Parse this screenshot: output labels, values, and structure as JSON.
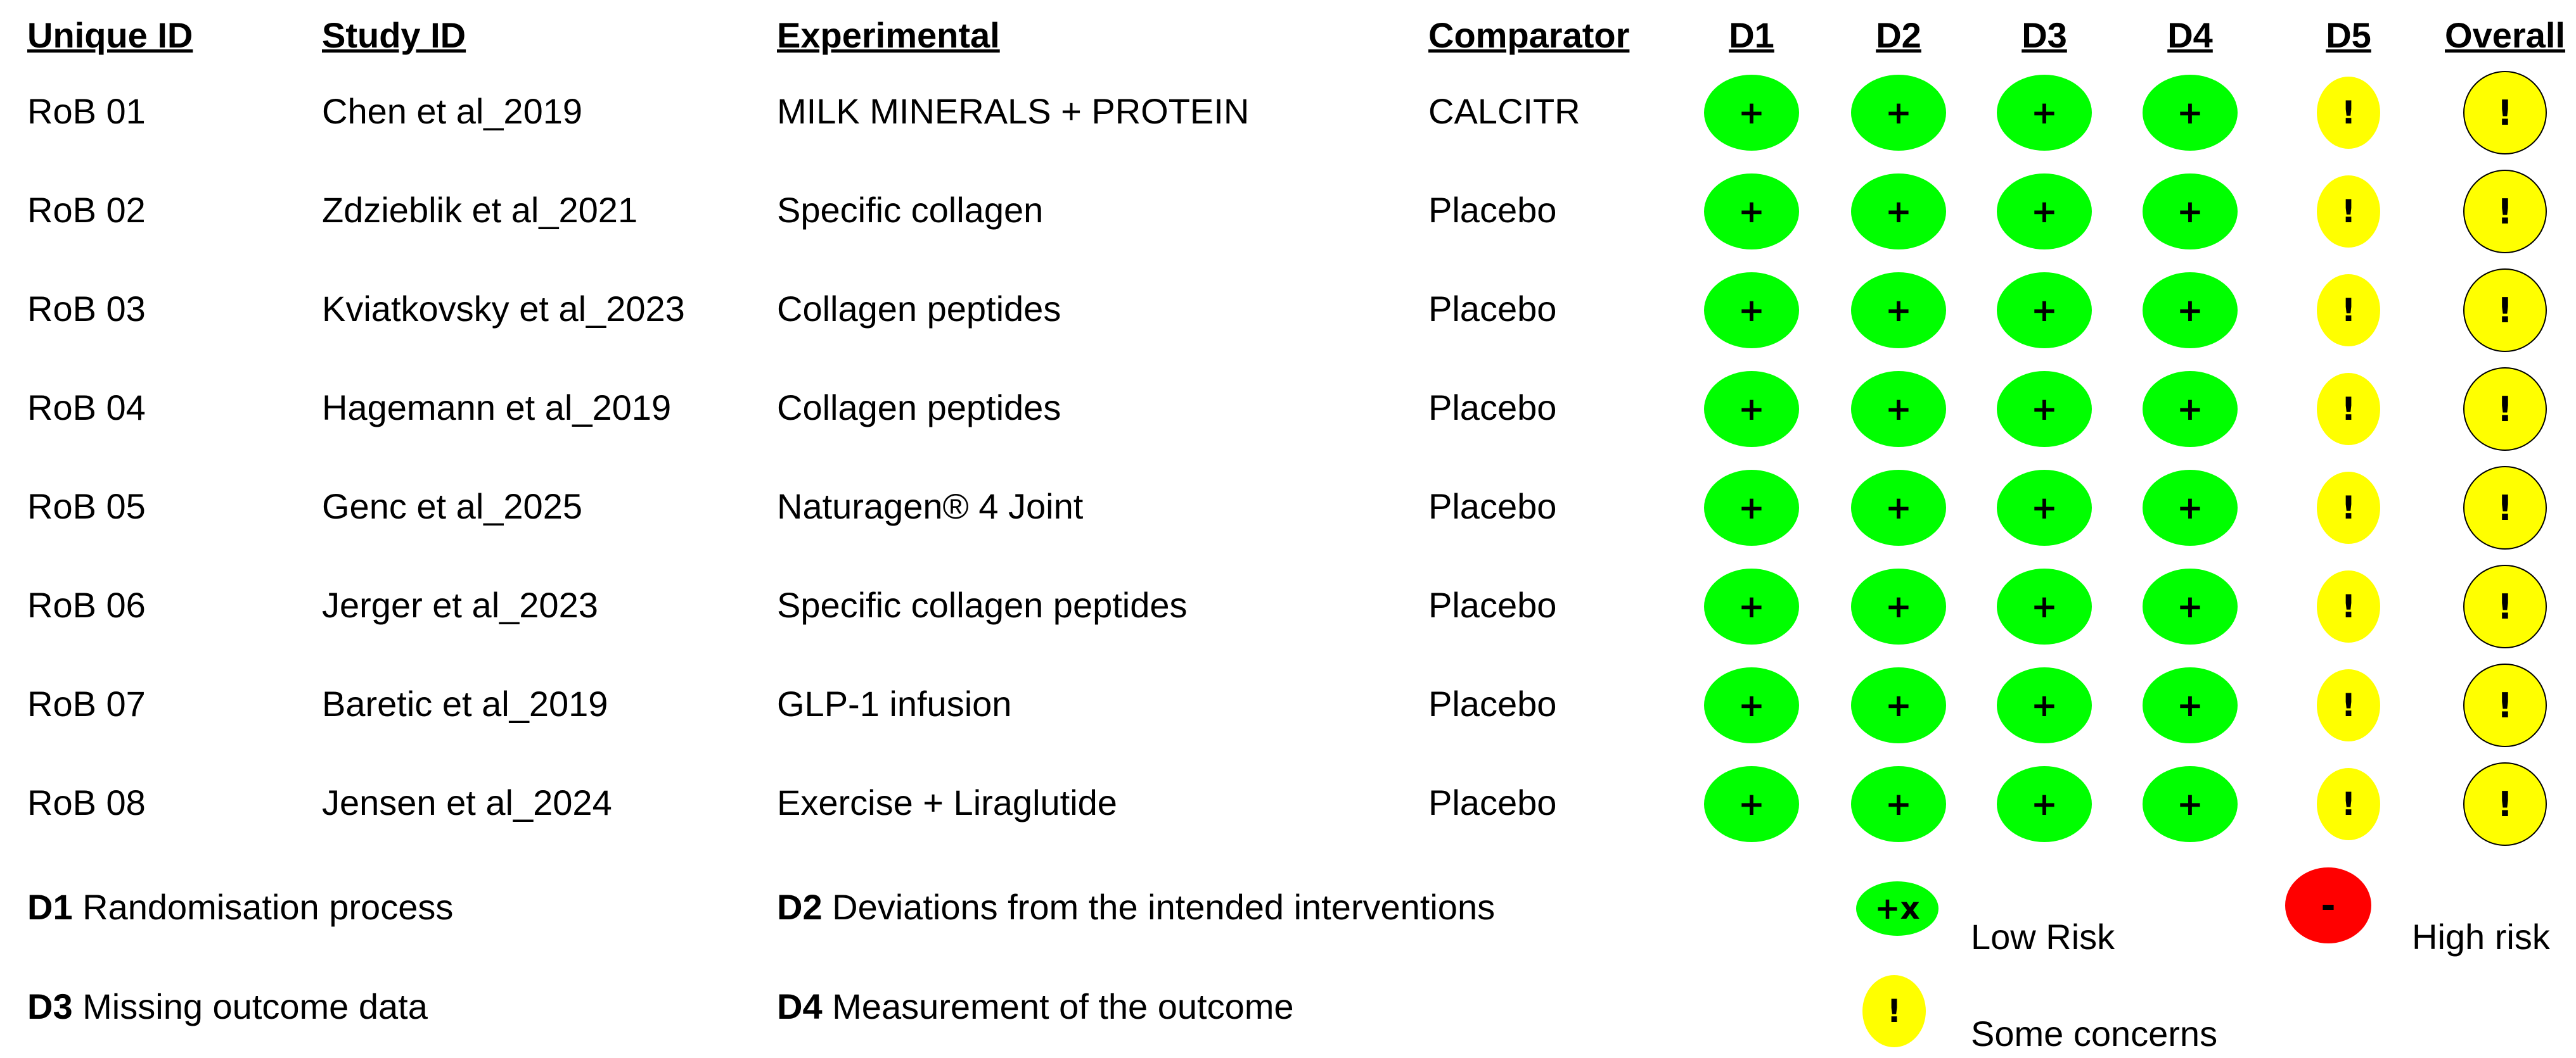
{
  "headers": {
    "unique_id": "Unique ID",
    "study_id": "Study ID",
    "experimental": "Experimental",
    "comparator": "Comparator",
    "d1": "D1",
    "d2": "D2",
    "d3": "D3",
    "d4": "D4",
    "d5": "D5",
    "overall": "Overall"
  },
  "rows": [
    {
      "unique_id": "RoB 01",
      "study_id": "Chen et al_2019",
      "experimental": "MILK MINERALS + PROTEIN",
      "comparator": "CALCITR",
      "d1": "+",
      "d2": "+",
      "d3": "+",
      "d4": "+",
      "d5": "!",
      "overall": "!"
    },
    {
      "unique_id": "RoB 02",
      "study_id": "Zdzieblik et al_2021",
      "experimental": "Specific collagen",
      "comparator": "Placebo",
      "d1": "+",
      "d2": "+",
      "d3": "+",
      "d4": "+",
      "d5": "!",
      "overall": "!"
    },
    {
      "unique_id": "RoB 03",
      "study_id": "Kviatkovsky et al_2023",
      "experimental": "Collagen peptides",
      "comparator": "Placebo",
      "d1": "+",
      "d2": "+",
      "d3": "+",
      "d4": "+",
      "d5": "!",
      "overall": "!"
    },
    {
      "unique_id": "RoB 04",
      "study_id": "Hagemann et al_2019",
      "experimental": "Collagen peptides",
      "comparator": "Placebo",
      "d1": "+",
      "d2": "+",
      "d3": "+",
      "d4": "+",
      "d5": "!",
      "overall": "!"
    },
    {
      "unique_id": "RoB 05",
      "study_id": "Genc et al_2025",
      "experimental": "Naturagen® 4 Joint",
      "comparator": "Placebo",
      "d1": "+",
      "d2": "+",
      "d3": "+",
      "d4": "+",
      "d5": "!",
      "overall": "!"
    },
    {
      "unique_id": "RoB 06",
      "study_id": "Jerger et al_2023",
      "experimental": "Specific collagen peptides",
      "comparator": "Placebo",
      "d1": "+",
      "d2": "+",
      "d3": "+",
      "d4": "+",
      "d5": "!",
      "overall": "!"
    },
    {
      "unique_id": "RoB 07",
      "study_id": "Baretic et al_2019",
      "experimental": "GLP-1 infusion",
      "comparator": "Placebo",
      "d1": "+",
      "d2": "+",
      "d3": "+",
      "d4": "+",
      "d5": "!",
      "overall": "!"
    },
    {
      "unique_id": "RoB 08",
      "study_id": "Jensen et al_2024",
      "experimental": "Exercise + Liraglutide",
      "comparator": "Placebo",
      "d1": "+",
      "d2": "+",
      "d3": "+",
      "d4": "+",
      "d5": "!",
      "overall": "!"
    }
  ],
  "domains_legend": {
    "d1_code": "D1",
    "d1_text": "Randomisation process",
    "d2_code": "D2",
    "d2_text": "Deviations from the intended interventions",
    "d3_code": "D3",
    "d3_text": "Missing outcome data",
    "d4_code": "D4",
    "d4_text": "Measurement of the outcome"
  },
  "judgement_legend": {
    "low_symbol": "+x",
    "low_label": "Low Risk",
    "high_symbol": "-",
    "high_label": "High risk",
    "some_symbol": "!",
    "some_label": "Some concerns"
  },
  "colors": {
    "low": "#00ff00",
    "some": "#ffff00",
    "high": "#ff0000"
  }
}
